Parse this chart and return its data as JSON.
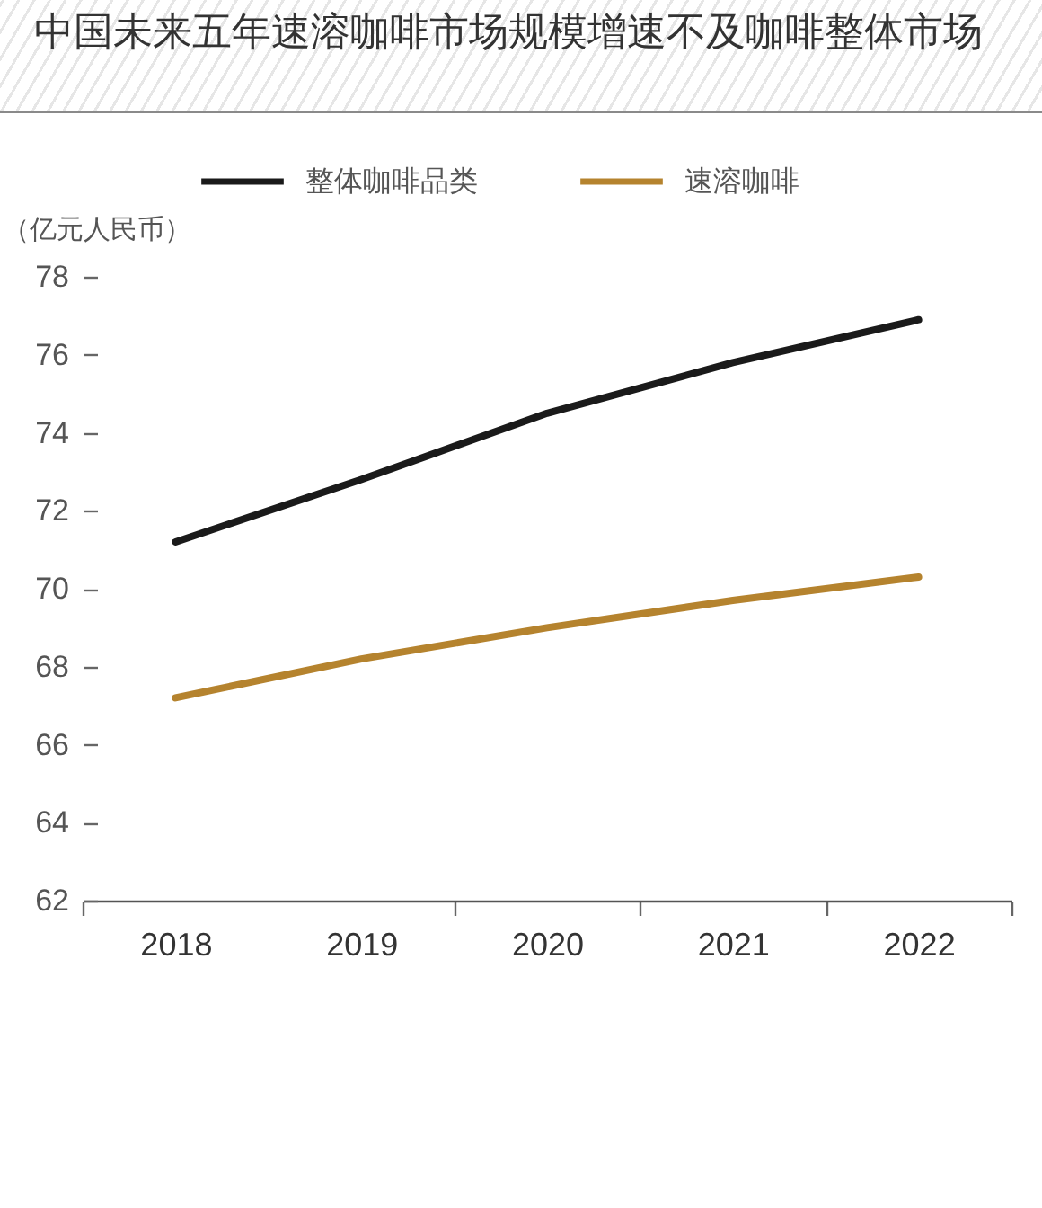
{
  "chart_data": {
    "type": "line",
    "title": "中国未来五年速溶咖啡市场规模增速不及咖啡整体市场",
    "ylabel": "（亿元人民币）",
    "categories": [
      "2018",
      "2019",
      "2020",
      "2021",
      "2022"
    ],
    "series": [
      {
        "name": "整体咖啡品类",
        "color": "#1a1a1a",
        "values": [
          71.2,
          72.8,
          74.5,
          75.8,
          76.9
        ]
      },
      {
        "name": "速溶咖啡",
        "color": "#b5832e",
        "values": [
          67.2,
          68.2,
          69.0,
          69.7,
          70.3
        ]
      }
    ],
    "ylim": [
      62,
      78
    ],
    "yticks": [
      62,
      64,
      66,
      68,
      70,
      72,
      74,
      76,
      78
    ],
    "grid": false,
    "legend": "top",
    "marker": "none",
    "line_style": "solid"
  }
}
